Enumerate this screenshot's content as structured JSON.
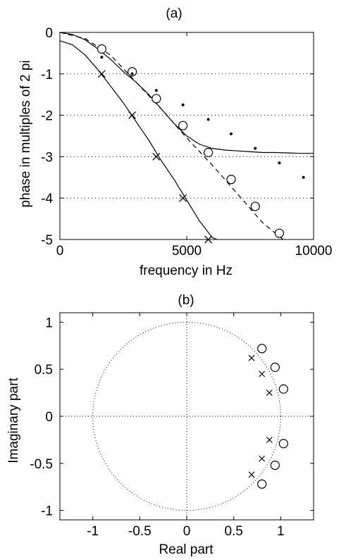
{
  "chart_data": [
    {
      "type": "line",
      "title": "(a)",
      "xlabel": "frequency in Hz",
      "ylabel": "phase in multiples of 2 pi",
      "xlim": [
        0,
        10000
      ],
      "ylim": [
        -5,
        0
      ],
      "xticks": [
        0,
        5000,
        10000
      ],
      "xtick_labels": [
        "0",
        "5000",
        "10000"
      ],
      "yticks": [
        0,
        -1,
        -2,
        -3,
        -4,
        -5
      ],
      "ytick_labels": [
        "0",
        "-1",
        "-2",
        "-3",
        "-4",
        "-5"
      ],
      "grid": "dotted horizontal lines at integer y",
      "series": [
        {
          "style": "solid line",
          "x": [
            0,
            500,
            1000,
            1500,
            2000,
            2500,
            3000,
            3500,
            4000,
            4500,
            5000,
            5500,
            6000,
            6500,
            7000,
            7500,
            8000,
            8500,
            9000,
            9500,
            10000
          ],
          "y": [
            0,
            -0.05,
            -0.18,
            -0.4,
            -0.65,
            -0.95,
            -1.2,
            -1.5,
            -1.85,
            -2.2,
            -2.5,
            -2.7,
            -2.8,
            -2.84,
            -2.86,
            -2.88,
            -2.9,
            -2.9,
            -2.91,
            -2.92,
            -2.92
          ]
        },
        {
          "style": "solid line",
          "x": [
            0,
            500,
            1000,
            1500,
            2000,
            2500,
            3000,
            3500,
            4000,
            4500,
            5000,
            5500,
            6000,
            6200
          ],
          "y": [
            -0.2,
            -0.3,
            -0.55,
            -0.9,
            -1.3,
            -1.7,
            -2.15,
            -2.6,
            -3.1,
            -3.55,
            -4.05,
            -4.55,
            -4.95,
            -5.0
          ]
        },
        {
          "style": "dashed line",
          "x": [
            0,
            1000,
            2000,
            3000,
            4000,
            5000,
            6000,
            7000,
            8000,
            9000
          ],
          "y": [
            0,
            -0.15,
            -0.55,
            -1.2,
            -1.85,
            -2.55,
            -3.2,
            -3.9,
            -4.6,
            -5.1
          ]
        },
        {
          "marker": "o",
          "x": [
            1650,
            2850,
            3800,
            4850,
            5850,
            6750,
            7700,
            8650
          ],
          "y": [
            -0.4,
            -0.95,
            -1.6,
            -2.25,
            -2.9,
            -3.55,
            -4.2,
            -4.85
          ]
        },
        {
          "marker": "x",
          "x": [
            1650,
            2850,
            3800,
            4850,
            5850
          ],
          "y": [
            -1.0,
            -2.0,
            -3.0,
            -4.0,
            -5.0
          ]
        },
        {
          "marker": "dot",
          "x": [
            1650,
            2850,
            3800,
            4850,
            5850,
            6750,
            7700,
            8650,
            9600
          ],
          "y": [
            -0.6,
            -1.0,
            -1.4,
            -1.75,
            -2.1,
            -2.45,
            -2.8,
            -3.15,
            -3.5
          ]
        }
      ]
    },
    {
      "type": "scatter",
      "title": "(b)",
      "xlabel": "Real part",
      "ylabel": "Imaginary part",
      "xlim": [
        -1.35,
        1.35
      ],
      "ylim": [
        -1.1,
        1.1
      ],
      "xticks": [
        -1,
        -0.5,
        0,
        0.5,
        1
      ],
      "xtick_labels": [
        "-1",
        "-0.5",
        "0",
        "0.5",
        "1"
      ],
      "yticks": [
        1,
        0.5,
        0,
        -0.5,
        -1
      ],
      "ytick_labels": [
        "1",
        "0.5",
        "0",
        "-0.5",
        "-1"
      ],
      "unit_circle": "dotted",
      "axes_lines": "dotted",
      "zeros": [
        [
          0.8,
          0.72
        ],
        [
          0.94,
          0.52
        ],
        [
          1.03,
          0.29
        ],
        [
          1.03,
          -0.29
        ],
        [
          0.94,
          -0.52
        ],
        [
          0.8,
          -0.72
        ]
      ],
      "poles": [
        [
          0.69,
          0.62
        ],
        [
          0.8,
          0.45
        ],
        [
          0.88,
          0.25
        ],
        [
          0.88,
          -0.25
        ],
        [
          0.8,
          -0.45
        ],
        [
          0.69,
          -0.62
        ]
      ]
    }
  ]
}
